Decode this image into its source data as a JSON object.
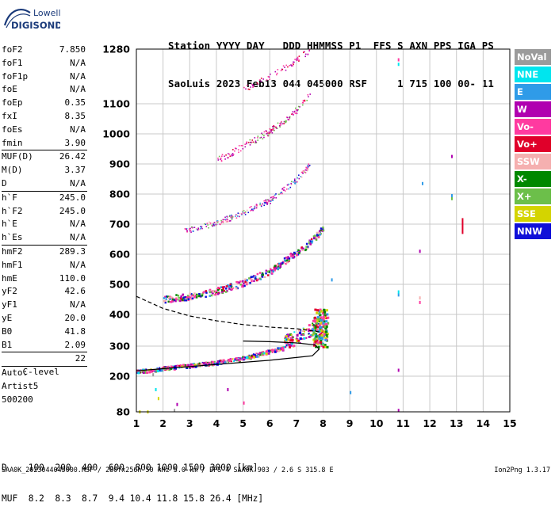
{
  "logo": {
    "line1": "Lowell",
    "line2": "DIGISONDE"
  },
  "header": {
    "line1": "Station YYYY DAY   DDD HHMMSS P1  FFS S AXN PPS IGA PS",
    "line2": "SaoLuis 2023 Feb13 044 045000 RSF     1 715 100 00- 11"
  },
  "params": {
    "group1": [
      {
        "name": "foF2",
        "value": "7.850"
      },
      {
        "name": "foF1",
        "value": "N/A"
      },
      {
        "name": "foF1p",
        "value": "N/A"
      },
      {
        "name": "foE",
        "value": "N/A"
      },
      {
        "name": "foEp",
        "value": "0.35"
      },
      {
        "name": "fxI",
        "value": "8.35"
      },
      {
        "name": "foEs",
        "value": "N/A"
      },
      {
        "name": "fmin",
        "value": "3.90"
      }
    ],
    "group2": [
      {
        "name": "MUF(D)",
        "value": "26.42"
      },
      {
        "name": "M(D)",
        "value": "3.37"
      },
      {
        "name": "D",
        "value": "N/A"
      }
    ],
    "group3": [
      {
        "name": "h`F",
        "value": "245.0"
      },
      {
        "name": "h`F2",
        "value": "245.0"
      },
      {
        "name": "h`E",
        "value": "N/A"
      },
      {
        "name": "h`Es",
        "value": "N/A"
      }
    ],
    "group4": [
      {
        "name": "hmF2",
        "value": "289.3"
      },
      {
        "name": "hmF1",
        "value": "N/A"
      },
      {
        "name": "hmE",
        "value": "110.0"
      },
      {
        "name": "yF2",
        "value": "42.6"
      },
      {
        "name": "yF1",
        "value": "N/A"
      },
      {
        "name": "yE",
        "value": "20.0"
      },
      {
        "name": "B0",
        "value": "41.8"
      },
      {
        "name": "B1",
        "value": "2.09"
      }
    ],
    "clevel": {
      "name": "C-level",
      "value": "22"
    },
    "auto_lines": [
      "Auto:",
      "Artist5",
      "500200"
    ]
  },
  "legend": [
    {
      "label": "NoVal",
      "color": "#9b9b9b"
    },
    {
      "label": "NNE",
      "color": "#00e5ee"
    },
    {
      "label": "E",
      "color": "#2f9be8"
    },
    {
      "label": "W",
      "color": "#b000b0"
    },
    {
      "label": "Vo-",
      "color": "#ff3aa0"
    },
    {
      "label": "Vo+",
      "color": "#e0002a"
    },
    {
      "label": "SSW",
      "color": "#f5b0b0"
    },
    {
      "label": "X-",
      "color": "#008800"
    },
    {
      "label": "X+",
      "color": "#6cbf4a"
    },
    {
      "label": "SSE",
      "color": "#d4d400"
    },
    {
      "label": "NNW",
      "color": "#1010d8"
    }
  ],
  "chart_data": {
    "type": "scatter",
    "title": "",
    "xlabel": "",
    "ylabel": "",
    "xlim": [
      1,
      15
    ],
    "ylim": [
      80,
      1280
    ],
    "x_ticks": [
      1,
      2,
      3,
      4,
      5,
      6,
      7,
      8,
      9,
      10,
      11,
      12,
      13,
      14,
      15
    ],
    "y_ticks": [
      80,
      200,
      300,
      400,
      500,
      600,
      700,
      800,
      900,
      1000,
      1100,
      1280
    ],
    "y_scale": "non-linear (compressed at low heights)",
    "grid": true,
    "series": [
      {
        "name": "F2 trace (1st hop)",
        "x": [
          1.0,
          1.5,
          2.0,
          3.0,
          4.0,
          5.0,
          6.0,
          7.0,
          7.5,
          7.85
        ],
        "y": [
          218,
          222,
          228,
          238,
          248,
          262,
          285,
          308,
          330,
          370
        ]
      },
      {
        "name": "F2 trace (2nd hop)",
        "x": [
          2.0,
          3.0,
          4.0,
          5.0,
          6.0,
          7.0,
          7.5,
          8.0
        ],
        "y": [
          452,
          462,
          480,
          508,
          545,
          610,
          640,
          690
        ]
      },
      {
        "name": "F2 trace (3rd hop)",
        "x": [
          2.8,
          4.0,
          5.0,
          6.0,
          7.0,
          7.5
        ],
        "y": [
          680,
          705,
          740,
          780,
          850,
          900
        ]
      },
      {
        "name": "F2 trace (4th hop)",
        "x": [
          4.0,
          5.0,
          6.0,
          7.0,
          7.5
        ],
        "y": [
          912,
          960,
          1010,
          1080,
          1130
        ]
      },
      {
        "name": "F2 trace (5th hop)",
        "x": [
          5.0,
          6.0,
          7.0,
          7.5
        ],
        "y": [
          1150,
          1190,
          1245,
          1280
        ]
      }
    ],
    "profile_solid": {
      "x": [
        1.0,
        2.0,
        3.0,
        4.0,
        5.0,
        6.0,
        7.0,
        7.6,
        7.85,
        7.7,
        7.0,
        6.0,
        5.0
      ],
      "y": [
        218,
        225,
        232,
        239,
        246,
        253,
        262,
        268,
        290,
        304,
        310,
        314,
        316
      ]
    },
    "profile_dashed": {
      "x": [
        1.0,
        2.0,
        3.0,
        4.0,
        5.0,
        6.0,
        7.0,
        7.85
      ],
      "y": [
        460,
        420,
        395,
        380,
        368,
        360,
        355,
        345
      ]
    },
    "annotations": {
      "muf_table": {
        "D_label": "D",
        "D_values": [
          "100",
          "200",
          "400",
          "600",
          "800",
          "1000",
          "1500",
          "3000"
        ],
        "D_unit": "[km]",
        "MUF_label": "MUF",
        "MUF_values": [
          "8.2",
          "8.3",
          "8.7",
          "9.4",
          "10.4",
          "11.8",
          "15.8",
          "26.4"
        ],
        "MUF_unit": "[MHz]"
      },
      "footer": "SAA0K_2023044045000.RSF / 280fx256h 50 kHz 5.0 km / DPS-4 SAA0K 903 / 2.6 S 315.8 E",
      "version": "Ion2Png 1.3.17"
    }
  }
}
